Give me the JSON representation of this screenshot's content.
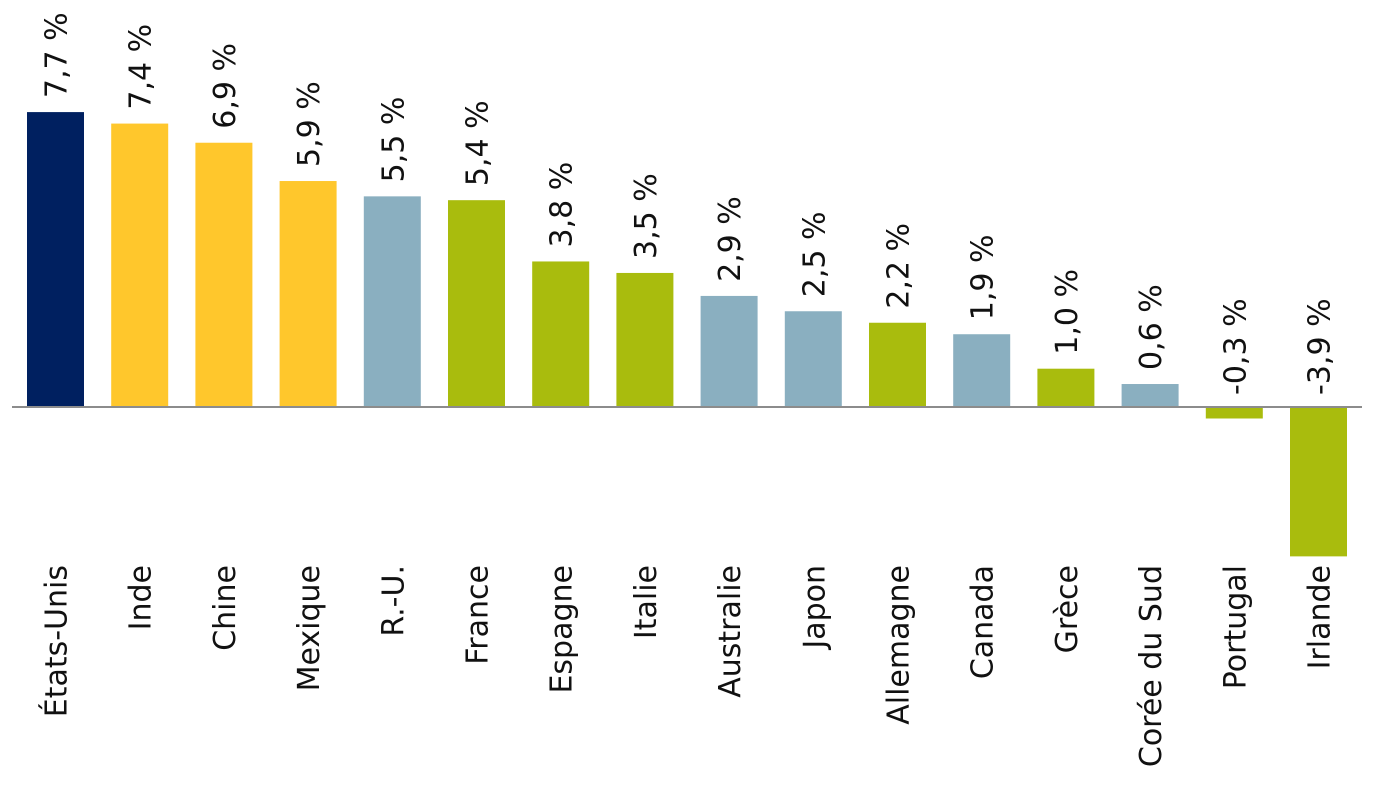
{
  "chart_data": {
    "type": "bar",
    "title": "",
    "xlabel": "",
    "ylabel": "",
    "ylim": [
      -3.9,
      7.7
    ],
    "grid": false,
    "legend": "none",
    "categories": [
      "États-Unis",
      "Inde",
      "Chine",
      "Mexique",
      "R.-U.",
      "France",
      "Espagne",
      "Italie",
      "Australie",
      "Japon",
      "Allemagne",
      "Canada",
      "Grèce",
      "Corée du Sud",
      "Portugal",
      "Irlande"
    ],
    "values": [
      7.7,
      7.4,
      6.9,
      5.9,
      5.5,
      5.4,
      3.8,
      3.5,
      2.9,
      2.5,
      2.2,
      1.9,
      1.0,
      0.6,
      -0.3,
      -3.9
    ],
    "value_labels": [
      "7,7 %",
      "7,4 %",
      "6,9 %",
      "5,9 %",
      "5,5 %",
      "5,4 %",
      "3,8 %",
      "3,5 %",
      "2,9 %",
      "2,5 %",
      "2,2 %",
      "1,9 %",
      "1,0 %",
      "0,6 %",
      "-0,3 %",
      "-3,9 %"
    ],
    "bar_colors": [
      "#002060",
      "#FFC72C",
      "#FFC72C",
      "#FFC72C",
      "#8AAFC0",
      "#A9BC0D",
      "#A9BC0D",
      "#A9BC0D",
      "#8AAFC0",
      "#8AAFC0",
      "#A9BC0D",
      "#8AAFC0",
      "#A9BC0D",
      "#8AAFC0",
      "#A9BC0D",
      "#A9BC0D"
    ],
    "axis_color": "#8c8c8c"
  }
}
